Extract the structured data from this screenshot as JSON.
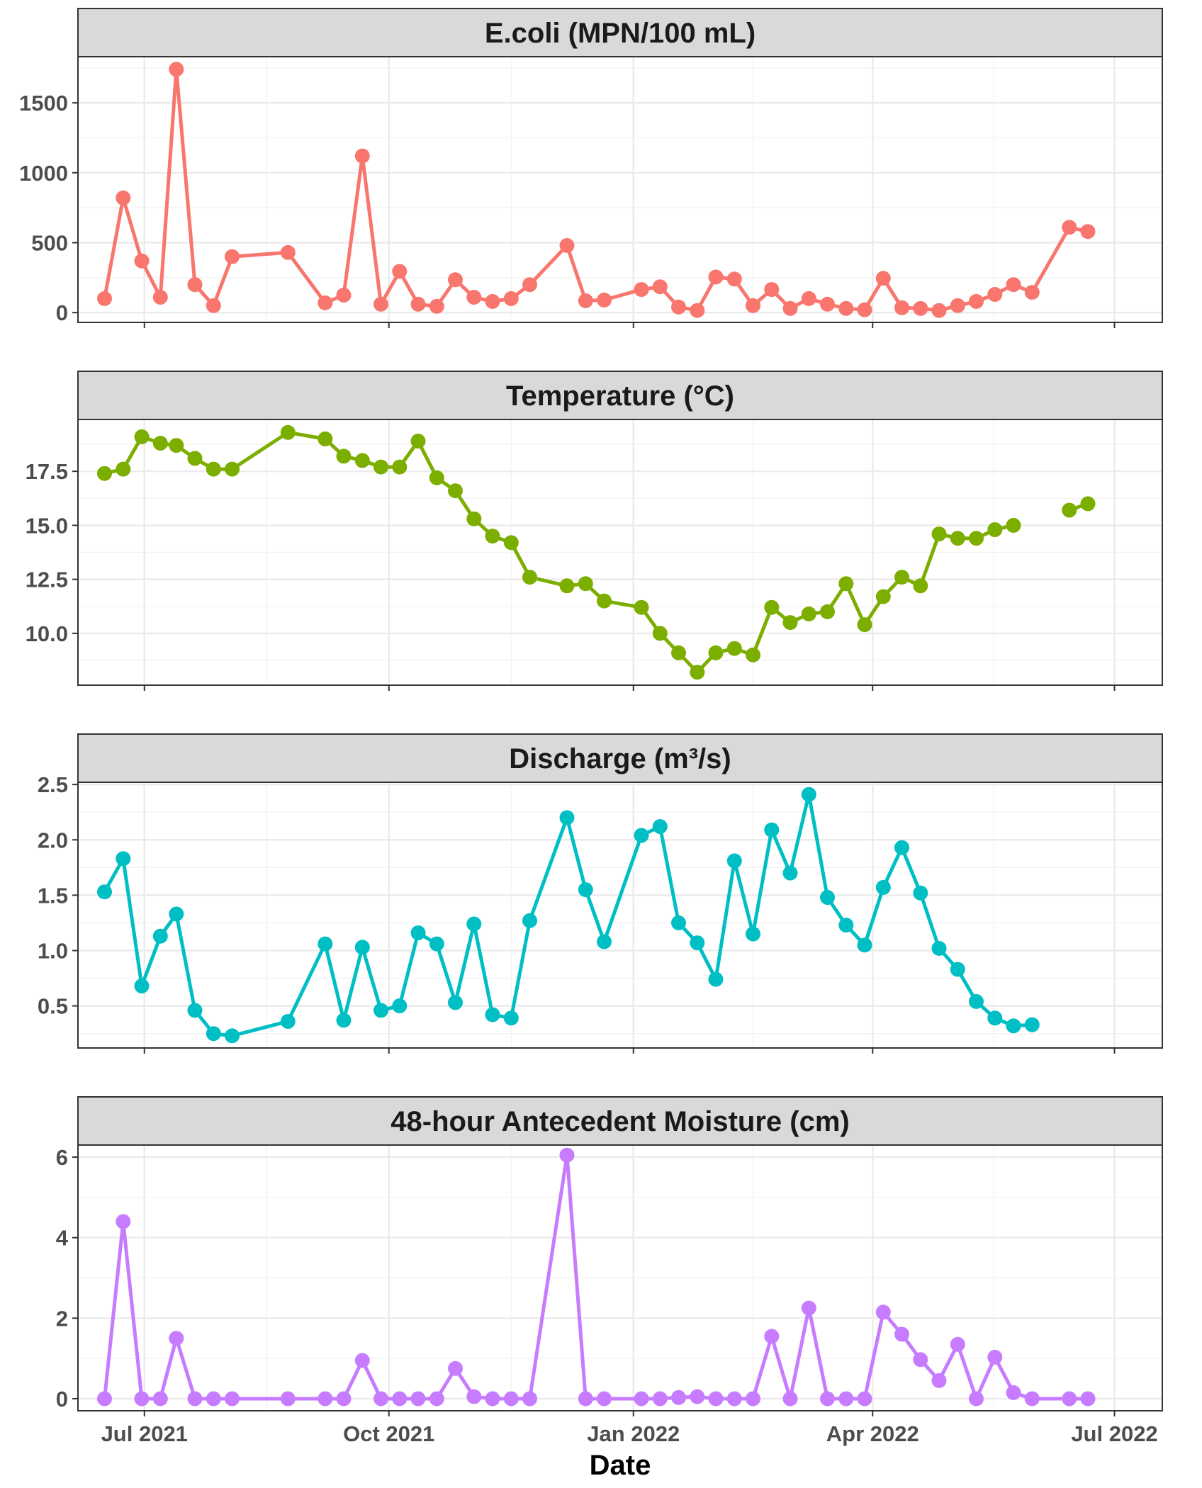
{
  "chart_data": {
    "type": "line",
    "xlabel": "Date",
    "x_ticks": [
      "Jul 2021",
      "Oct 2021",
      "Jan 2022",
      "Apr 2022",
      "Jul 2022"
    ],
    "x_tick_dates": [
      "2021-07-01",
      "2021-10-01",
      "2022-01-01",
      "2022-04-01",
      "2022-07-01"
    ],
    "xlim": [
      "2021-06-06",
      "2022-07-19"
    ],
    "grid": true,
    "legend": "none",
    "facets": [
      {
        "strip": "E.coli (MPN/100 mL)",
        "color": "#F8766D",
        "ylim": [
          -70,
          1830
        ],
        "y_ticks": [
          0,
          500,
          1000,
          1500
        ],
        "y_tick_labels": [
          "0",
          "500",
          "1000",
          "1500"
        ],
        "points": [
          [
            "2021-06-16",
            100
          ],
          [
            "2021-06-23",
            820
          ],
          [
            "2021-06-30",
            370
          ],
          [
            "2021-07-07",
            110
          ],
          [
            "2021-07-13",
            1740
          ],
          [
            "2021-07-20",
            200
          ],
          [
            "2021-07-27",
            50
          ],
          [
            "2021-08-03",
            400
          ],
          [
            "2021-08-24",
            430
          ],
          [
            "2021-09-07",
            70
          ],
          [
            "2021-09-14",
            125
          ],
          [
            "2021-09-21",
            1120
          ],
          [
            "2021-09-28",
            60
          ],
          [
            "2021-10-05",
            295
          ],
          [
            "2021-10-12",
            60
          ],
          [
            "2021-10-19",
            45
          ],
          [
            "2021-10-26",
            235
          ],
          [
            "2021-11-02",
            110
          ],
          [
            "2021-11-09",
            80
          ],
          [
            "2021-11-16",
            100
          ],
          [
            "2021-11-23",
            200
          ],
          [
            "2021-12-07",
            480
          ],
          [
            "2021-12-14",
            85
          ],
          [
            "2021-12-21",
            90
          ],
          [
            "2022-01-04",
            165
          ],
          [
            "2022-01-11",
            185
          ],
          [
            "2022-01-18",
            40
          ],
          [
            "2022-01-25",
            15
          ],
          [
            "2022-02-01",
            255
          ],
          [
            "2022-02-08",
            240
          ],
          [
            "2022-02-15",
            50
          ],
          [
            "2022-02-22",
            165
          ],
          [
            "2022-03-01",
            30
          ],
          [
            "2022-03-08",
            100
          ],
          [
            "2022-03-15",
            60
          ],
          [
            "2022-03-22",
            30
          ],
          [
            "2022-03-29",
            20
          ],
          [
            "2022-04-05",
            245
          ],
          [
            "2022-04-12",
            35
          ],
          [
            "2022-04-19",
            30
          ],
          [
            "2022-04-26",
            15
          ],
          [
            "2022-05-03",
            50
          ],
          [
            "2022-05-10",
            80
          ],
          [
            "2022-05-17",
            130
          ],
          [
            "2022-05-24",
            200
          ],
          [
            "2022-05-31",
            145
          ],
          [
            "2022-06-14",
            610
          ],
          [
            "2022-06-21",
            580
          ]
        ]
      },
      {
        "strip": "Temperature (°C)",
        "color": "#7CAE00",
        "ylim": [
          7.6,
          19.9
        ],
        "y_ticks": [
          10,
          12.5,
          15,
          17.5
        ],
        "y_tick_labels": [
          "10.0",
          "12.5",
          "15.0",
          "17.5"
        ],
        "points": [
          [
            "2021-06-16",
            17.4
          ],
          [
            "2021-06-23",
            17.6
          ],
          [
            "2021-06-30",
            19.1
          ],
          [
            "2021-07-07",
            18.8
          ],
          [
            "2021-07-13",
            18.7
          ],
          [
            "2021-07-20",
            18.1
          ],
          [
            "2021-07-27",
            17.6
          ],
          [
            "2021-08-03",
            17.6
          ],
          [
            "2021-08-24",
            19.3
          ],
          [
            "2021-09-07",
            19.0
          ],
          [
            "2021-09-14",
            18.2
          ],
          [
            "2021-09-21",
            18.0
          ],
          [
            "2021-09-28",
            17.7
          ],
          [
            "2021-10-05",
            17.7
          ],
          [
            "2021-10-12",
            18.9
          ],
          [
            "2021-10-19",
            17.2
          ],
          [
            "2021-10-26",
            16.6
          ],
          [
            "2021-11-02",
            15.3
          ],
          [
            "2021-11-09",
            14.5
          ],
          [
            "2021-11-16",
            14.2
          ],
          [
            "2021-11-23",
            12.6
          ],
          [
            "2021-12-07",
            12.2
          ],
          [
            "2021-12-14",
            12.3
          ],
          [
            "2021-12-21",
            11.5
          ],
          [
            "2022-01-04",
            11.2
          ],
          [
            "2022-01-11",
            10.0
          ],
          [
            "2022-01-18",
            9.1
          ],
          [
            "2022-01-25",
            8.2
          ],
          [
            "2022-02-01",
            9.1
          ],
          [
            "2022-02-08",
            9.3
          ],
          [
            "2022-02-15",
            9.0
          ],
          [
            "2022-02-22",
            11.2
          ],
          [
            "2022-03-01",
            10.5
          ],
          [
            "2022-03-08",
            10.9
          ],
          [
            "2022-03-15",
            11.0
          ],
          [
            "2022-03-22",
            12.3
          ],
          [
            "2022-03-29",
            10.4
          ],
          [
            "2022-04-05",
            11.7
          ],
          [
            "2022-04-12",
            12.6
          ],
          [
            "2022-04-19",
            12.2
          ],
          [
            "2022-04-26",
            14.6
          ],
          [
            "2022-05-03",
            14.4
          ],
          [
            "2022-05-10",
            14.4
          ],
          [
            "2022-05-17",
            14.8
          ],
          [
            "2022-05-24",
            15.0
          ],
          null,
          [
            "2022-06-14",
            15.7
          ],
          [
            "2022-06-21",
            16.0
          ]
        ]
      },
      {
        "strip": "Discharge (m³/s)",
        "color": "#00BFC4",
        "ylim": [
          0.12,
          2.52
        ],
        "y_ticks": [
          0.5,
          1.0,
          1.5,
          2.0,
          2.5
        ],
        "y_tick_labels": [
          "0.5",
          "1.0",
          "1.5",
          "2.0",
          "2.5"
        ],
        "points": [
          [
            "2021-06-16",
            1.53
          ],
          [
            "2021-06-23",
            1.83
          ],
          [
            "2021-06-30",
            0.68
          ],
          [
            "2021-07-07",
            1.13
          ],
          [
            "2021-07-13",
            1.33
          ],
          [
            "2021-07-20",
            0.46
          ],
          [
            "2021-07-27",
            0.25
          ],
          [
            "2021-08-03",
            0.23
          ],
          [
            "2021-08-24",
            0.36
          ],
          [
            "2021-09-07",
            1.06
          ],
          [
            "2021-09-14",
            0.37
          ],
          [
            "2021-09-21",
            1.03
          ],
          [
            "2021-09-28",
            0.46
          ],
          [
            "2021-10-05",
            0.5
          ],
          [
            "2021-10-12",
            1.16
          ],
          [
            "2021-10-19",
            1.06
          ],
          [
            "2021-10-26",
            0.53
          ],
          [
            "2021-11-02",
            1.24
          ],
          [
            "2021-11-09",
            0.42
          ],
          [
            "2021-11-16",
            0.39
          ],
          [
            "2021-11-23",
            1.27
          ],
          [
            "2021-12-07",
            2.2
          ],
          [
            "2021-12-14",
            1.55
          ],
          [
            "2021-12-21",
            1.08
          ],
          [
            "2022-01-04",
            2.04
          ],
          [
            "2022-01-11",
            2.12
          ],
          [
            "2022-01-18",
            1.25
          ],
          [
            "2022-01-25",
            1.07
          ],
          [
            "2022-02-01",
            0.74
          ],
          [
            "2022-02-08",
            1.81
          ],
          [
            "2022-02-15",
            1.15
          ],
          [
            "2022-02-22",
            2.09
          ],
          [
            "2022-03-01",
            1.7
          ],
          [
            "2022-03-08",
            2.41
          ],
          [
            "2022-03-15",
            1.48
          ],
          [
            "2022-03-22",
            1.23
          ],
          [
            "2022-03-29",
            1.05
          ],
          [
            "2022-04-05",
            1.57
          ],
          [
            "2022-04-12",
            1.93
          ],
          [
            "2022-04-19",
            1.52
          ],
          [
            "2022-04-26",
            1.02
          ],
          [
            "2022-05-03",
            0.83
          ],
          [
            "2022-05-10",
            0.54
          ],
          [
            "2022-05-17",
            0.39
          ],
          [
            "2022-05-24",
            0.32
          ],
          [
            "2022-05-31",
            0.33
          ]
        ]
      },
      {
        "strip": "48-hour Antecedent Moisture (cm)",
        "color": "#C77CFF",
        "ylim": [
          -0.3,
          6.3
        ],
        "y_ticks": [
          0,
          2,
          4,
          6
        ],
        "y_tick_labels": [
          "0",
          "2",
          "4",
          "6"
        ],
        "points": [
          [
            "2021-06-16",
            0.0
          ],
          [
            "2021-06-23",
            4.4
          ],
          [
            "2021-06-30",
            0.0
          ],
          [
            "2021-07-07",
            0.0
          ],
          [
            "2021-07-13",
            1.5
          ],
          [
            "2021-07-20",
            0.0
          ],
          [
            "2021-07-27",
            0.0
          ],
          [
            "2021-08-03",
            0.0
          ],
          [
            "2021-08-24",
            0.0
          ],
          [
            "2021-09-07",
            0.0
          ],
          [
            "2021-09-14",
            0.0
          ],
          [
            "2021-09-21",
            0.95
          ],
          [
            "2021-09-28",
            0.0
          ],
          [
            "2021-10-05",
            0.0
          ],
          [
            "2021-10-12",
            0.0
          ],
          [
            "2021-10-19",
            0.0
          ],
          [
            "2021-10-26",
            0.75
          ],
          [
            "2021-11-02",
            0.05
          ],
          [
            "2021-11-09",
            0.0
          ],
          [
            "2021-11-16",
            0.0
          ],
          [
            "2021-11-23",
            0.0
          ],
          [
            "2021-12-07",
            6.05
          ],
          [
            "2021-12-14",
            0.0
          ],
          [
            "2021-12-21",
            0.0
          ],
          [
            "2022-01-04",
            0.0
          ],
          [
            "2022-01-11",
            0.0
          ],
          [
            "2022-01-18",
            0.03
          ],
          [
            "2022-01-25",
            0.05
          ],
          [
            "2022-02-01",
            0.0
          ],
          [
            "2022-02-08",
            0.0
          ],
          [
            "2022-02-15",
            0.0
          ],
          [
            "2022-02-22",
            1.55
          ],
          [
            "2022-03-01",
            0.0
          ],
          [
            "2022-03-08",
            2.25
          ],
          [
            "2022-03-15",
            0.0
          ],
          [
            "2022-03-22",
            0.0
          ],
          [
            "2022-03-29",
            0.0
          ],
          [
            "2022-04-05",
            2.15
          ],
          [
            "2022-04-12",
            1.6
          ],
          [
            "2022-04-19",
            0.97
          ],
          [
            "2022-04-26",
            0.45
          ],
          [
            "2022-05-03",
            1.35
          ],
          [
            "2022-05-10",
            0.0
          ],
          [
            "2022-05-17",
            1.03
          ],
          [
            "2022-05-24",
            0.15
          ],
          [
            "2022-05-31",
            0.0
          ],
          [
            "2022-06-14",
            0.0
          ],
          [
            "2022-06-21",
            0.0
          ]
        ]
      }
    ]
  }
}
